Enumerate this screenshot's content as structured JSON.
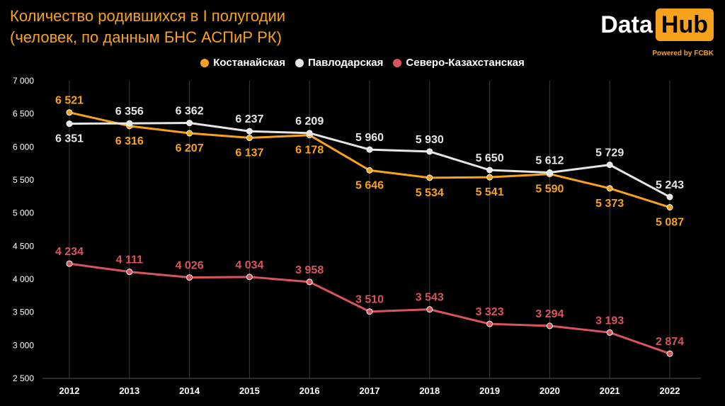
{
  "header": {
    "title_line1": "Количество родившихся в I полугодии",
    "title_line2": "(человек, по данным БНС АСПиР РК)"
  },
  "logo": {
    "part1": "Data",
    "part2": "Hub",
    "tagline": "Powered by FCBK"
  },
  "chart_data": {
    "type": "line",
    "x": [
      2012,
      2013,
      2014,
      2015,
      2016,
      2017,
      2018,
      2019,
      2020,
      2021,
      2022
    ],
    "x_labels": [
      "2012",
      "2013",
      "2014",
      "2015",
      "2016",
      "2017",
      "2018",
      "2019",
      "2020",
      "2021",
      "2022"
    ],
    "ylim": [
      2500,
      7000
    ],
    "y_ticks": [
      2500,
      3000,
      3500,
      4000,
      4500,
      5000,
      5500,
      6000,
      6500,
      7000
    ],
    "y_tick_labels": [
      "2 500",
      "3 000",
      "3 500",
      "4 000",
      "4 500",
      "5 000",
      "5 500",
      "6 000",
      "6 500",
      "7 000"
    ],
    "grid": "vertical",
    "legend_position": "top-center",
    "series": [
      {
        "name": "Костанайская",
        "color": "#f7a21b",
        "values": [
          6521,
          6316,
          6207,
          6137,
          6178,
          5646,
          5534,
          5541,
          5590,
          5373,
          5087
        ],
        "labels": [
          "6 521",
          "6 316",
          "6 207",
          "6 137",
          "6 178",
          "5 646",
          "5 534",
          "5 541",
          "5 590",
          "5 373",
          "5 087"
        ],
        "label_pos": [
          "above",
          "below",
          "below",
          "below",
          "below",
          "below",
          "below",
          "below",
          "below",
          "below",
          "below"
        ]
      },
      {
        "name": "Павлодарская",
        "color": "#e6e6e6",
        "values": [
          6351,
          6356,
          6362,
          6237,
          6209,
          5960,
          5930,
          5650,
          5612,
          5729,
          5243
        ],
        "labels": [
          "6 351",
          "6 356",
          "6 362",
          "6 237",
          "6 209",
          "5 960",
          "5 930",
          "5 650",
          "5 612",
          "5 729",
          "5 243"
        ],
        "label_pos": [
          "below",
          "above",
          "above",
          "above",
          "above",
          "above",
          "above",
          "above",
          "above",
          "above",
          "above"
        ]
      },
      {
        "name": "Северо-Казахстанская",
        "color": "#d9545c",
        "values": [
          4234,
          4111,
          4026,
          4034,
          3958,
          3510,
          3543,
          3323,
          3294,
          3193,
          2874
        ],
        "labels": [
          "4 234",
          "4 111",
          "4 026",
          "4 034",
          "3 958",
          "3 510",
          "3 543",
          "3 323",
          "3 294",
          "3 193",
          "2 874"
        ],
        "label_pos": [
          "above",
          "above",
          "above",
          "above",
          "above",
          "above",
          "above",
          "above",
          "above",
          "above",
          "above"
        ]
      }
    ]
  }
}
